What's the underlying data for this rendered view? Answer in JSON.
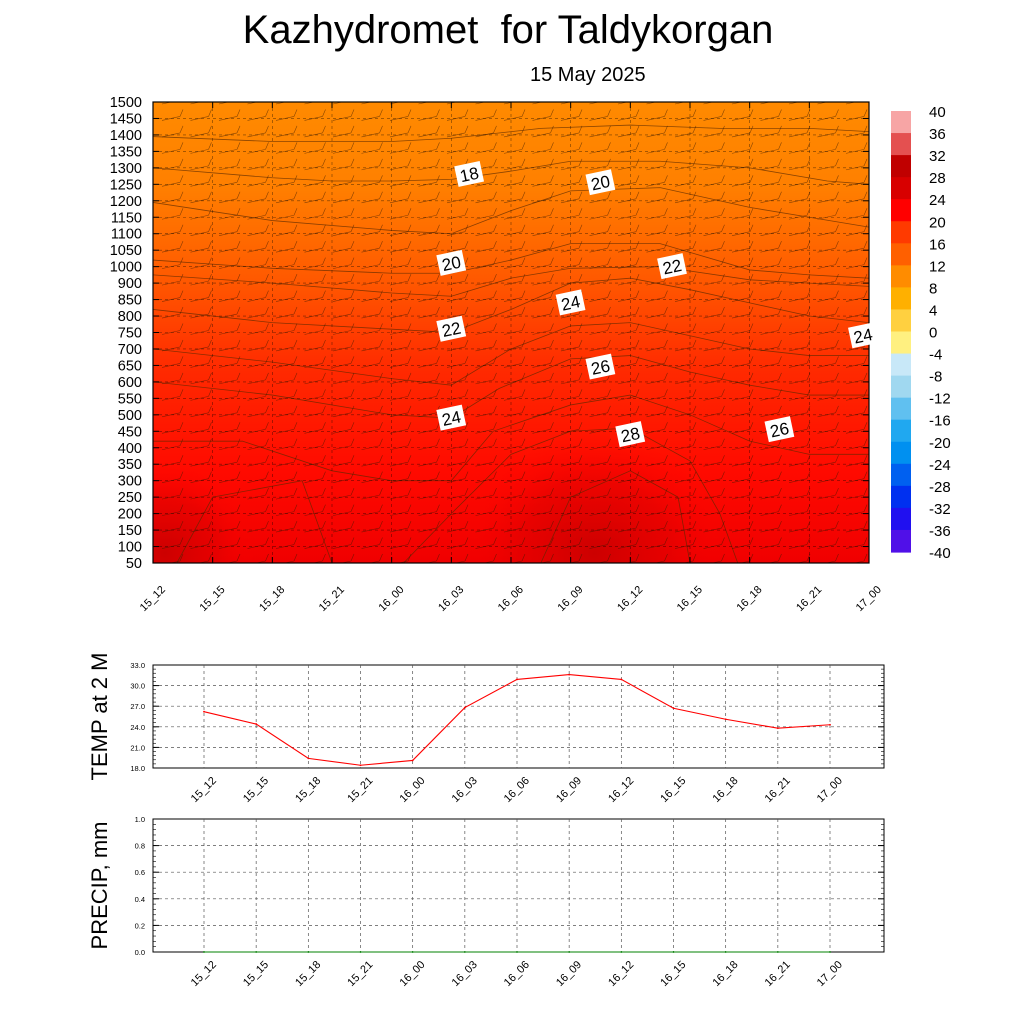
{
  "title": "Kazhydromet  for Taldykorgan",
  "subtitle": "15 May 2025",
  "chart_data": [
    {
      "type": "heatmap",
      "x_ticks": [
        "15_12",
        "15_15",
        "15_18",
        "15_21",
        "16_00",
        "16_03",
        "16_06",
        "16_09",
        "16_12",
        "16_15",
        "16_18",
        "16_21",
        "17_00"
      ],
      "y_ticks": [
        1500,
        1450,
        1400,
        1350,
        1300,
        1250,
        1200,
        1150,
        1100,
        1050,
        1000,
        900,
        850,
        800,
        750,
        700,
        650,
        600,
        550,
        500,
        450,
        400,
        350,
        300,
        250,
        200,
        150,
        100,
        50
      ],
      "colorbar_labels": [
        "40",
        "36",
        "32",
        "28",
        "24",
        "20",
        "16",
        "12",
        "8",
        "4",
        "0",
        "-4",
        "-8",
        "-12",
        "-16",
        "-20",
        "-24",
        "-28",
        "-32",
        "-36",
        "-40"
      ],
      "contour_labels": [
        {
          "text": "18",
          "x": 5.3,
          "y": 1280
        },
        {
          "text": "20",
          "x": 7.5,
          "y": 1255
        },
        {
          "text": "20",
          "x": 5.0,
          "y": 1010
        },
        {
          "text": "22",
          "x": 8.7,
          "y": 1000
        },
        {
          "text": "24",
          "x": 7.0,
          "y": 840
        },
        {
          "text": "22",
          "x": 5.0,
          "y": 760
        },
        {
          "text": "24",
          "x": 11.9,
          "y": 740
        },
        {
          "text": "26",
          "x": 7.5,
          "y": 645
        },
        {
          "text": "24",
          "x": 5.0,
          "y": 490
        },
        {
          "text": "28",
          "x": 8.0,
          "y": 440
        },
        {
          "text": "26",
          "x": 10.5,
          "y": 455
        }
      ],
      "colors": {
        "hot": "#ff0000",
        "warm": "#ff7f00",
        "peak": "#cc0000"
      }
    },
    {
      "type": "line",
      "ylabel": "TEMP at 2 M",
      "x": [
        "15_12",
        "15_15",
        "15_18",
        "15_21",
        "16_00",
        "16_03",
        "16_06",
        "16_09",
        "16_12",
        "16_15",
        "16_18",
        "16_21",
        "17_00"
      ],
      "y_tick_labels": [
        "33.0",
        "30.0",
        "27.0",
        "24.0",
        "21.0",
        "18.0"
      ],
      "ylim": [
        18,
        33
      ],
      "series": [
        {
          "values": [
            26.2,
            24.4,
            19.4,
            18.4,
            19.1,
            26.8,
            30.9,
            31.6,
            30.9,
            26.7,
            25.1,
            23.8,
            24.3
          ],
          "color": "#ff0000"
        }
      ],
      "grid": true
    },
    {
      "type": "line",
      "ylabel": "PRECIP, mm",
      "x": [
        "15_12",
        "15_15",
        "15_18",
        "15_21",
        "16_00",
        "16_03",
        "16_06",
        "16_09",
        "16_12",
        "16_15",
        "16_18",
        "16_21",
        "17_00"
      ],
      "y_tick_labels": [
        "1.0",
        "0.8",
        "0.6",
        "0.4",
        "0.2",
        "0.0"
      ],
      "ylim": [
        0,
        1
      ],
      "series": [
        {
          "values": [
            0,
            0,
            0,
            0,
            0,
            0,
            0,
            0,
            0,
            0,
            0,
            0,
            0
          ],
          "color": "#008000"
        }
      ],
      "grid": true
    }
  ]
}
